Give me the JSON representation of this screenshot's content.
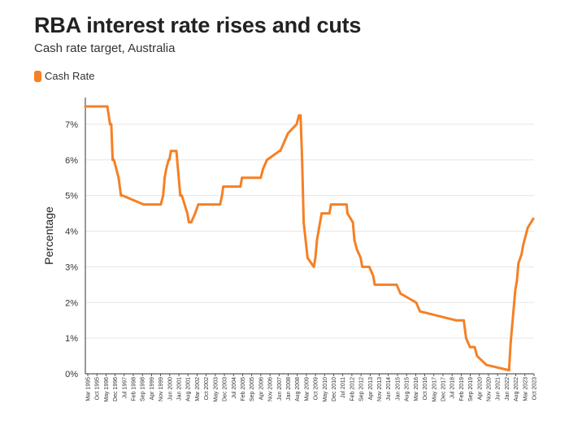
{
  "header": {
    "title": "RBA interest rate rises and cuts",
    "subtitle": "Cash rate target, Australia"
  },
  "legend": {
    "label": "Cash Rate",
    "color": "#f58025"
  },
  "chart_data": {
    "type": "line",
    "title": "RBA interest rate rises and cuts",
    "subtitle": "Cash rate target, Australia",
    "xlabel": "",
    "ylabel": "Percentage",
    "ylim": [
      0,
      7.75
    ],
    "yticks": [
      0,
      1,
      2,
      3,
      4,
      5,
      6,
      7
    ],
    "ytick_labels": [
      "0%",
      "1%",
      "2%",
      "3%",
      "4%",
      "5%",
      "6%",
      "7%"
    ],
    "grid": "horizontal",
    "legend_position": "top-left",
    "x_range": [
      1995.17,
      2023.9
    ],
    "xtick_labels": [
      "Mar 1995",
      "Oct 1995",
      "May 1996",
      "Dec 1996",
      "Jul 1997",
      "Feb 1998",
      "Sep 1998",
      "Apr 1999",
      "Nov 1999",
      "Jun 2000",
      "Jan 2001",
      "Aug 2001",
      "Mar 2002",
      "Oct 2002",
      "May 2003",
      "Dec 2003",
      "Jul 2004",
      "Feb 2005",
      "Sep 2005",
      "Apr 2006",
      "Nov 2006",
      "Jun 2007",
      "Jan 2008",
      "Aug 2008",
      "Mar 2009",
      "Oct 2009",
      "May 2010",
      "Dec 2010",
      "Jul 2011",
      "Feb 2012",
      "Sep 2012",
      "Apr 2013",
      "Nov 2013",
      "Jun 2014",
      "Jan 2015",
      "Aug 2015",
      "Mar 2016",
      "Oct 2016",
      "May 2017",
      "Dec 2017",
      "Jul 2018",
      "Feb 2019",
      "Sep 2019",
      "Apr 2020",
      "Nov 2020",
      "Jun 2021",
      "Jan 2022",
      "Aug 2022",
      "Mar 2023",
      "Oct 2023"
    ],
    "series": [
      {
        "name": "Cash Rate",
        "color": "#f58025",
        "x": [
          1995.17,
          1996.58,
          1996.75,
          1996.83,
          1996.92,
          1997.0,
          1997.3,
          1997.45,
          1997.55,
          1998.9,
          2000.0,
          2000.15,
          2000.25,
          2000.35,
          2000.5,
          2000.55,
          2000.65,
          2001.0,
          2001.15,
          2001.25,
          2001.35,
          2001.7,
          2001.8,
          2001.95,
          2002.2,
          2002.4,
          2003.8,
          2003.92,
          2004.0,
          2005.1,
          2005.2,
          2006.4,
          2006.55,
          2006.8,
          2007.6,
          2007.65,
          2007.9,
          2008.15,
          2008.7,
          2008.85,
          2008.95,
          2009.05,
          2009.15,
          2009.4,
          2009.8,
          2009.9,
          2010.0,
          2010.1,
          2010.3,
          2010.8,
          2010.9,
          2011.9,
          2011.95,
          2012.3,
          2012.4,
          2012.55,
          2012.8,
          2012.9,
          2013.35,
          2013.6,
          2013.7,
          2015.1,
          2015.35,
          2016.35,
          2016.6,
          2018.9,
          2019.4,
          2019.55,
          2019.8,
          2020.1,
          2020.25,
          2020.85,
          2022.3,
          2022.4,
          2022.5,
          2022.6,
          2022.7,
          2022.8,
          2022.9,
          2023.1,
          2023.2,
          2023.5,
          2023.85
        ],
        "values": [
          7.5,
          7.5,
          7.0,
          7.0,
          6.0,
          6.0,
          5.5,
          5.0,
          5.0,
          4.75,
          4.75,
          5.0,
          5.5,
          5.75,
          6.0,
          6.0,
          6.25,
          6.25,
          5.5,
          5.0,
          5.0,
          4.5,
          4.25,
          4.25,
          4.5,
          4.75,
          4.75,
          5.0,
          5.25,
          5.25,
          5.5,
          5.5,
          5.75,
          6.0,
          6.25,
          6.25,
          6.5,
          6.75,
          7.0,
          7.25,
          7.25,
          6.0,
          4.25,
          3.25,
          3.0,
          3.25,
          3.75,
          4.0,
          4.5,
          4.5,
          4.75,
          4.75,
          4.5,
          4.25,
          3.75,
          3.5,
          3.25,
          3.0,
          3.0,
          2.75,
          2.5,
          2.5,
          2.25,
          2.0,
          1.75,
          1.5,
          1.5,
          1.0,
          0.75,
          0.75,
          0.5,
          0.25,
          0.1,
          0.85,
          1.35,
          1.85,
          2.35,
          2.6,
          3.1,
          3.35,
          3.6,
          4.1,
          4.35
        ]
      }
    ]
  }
}
